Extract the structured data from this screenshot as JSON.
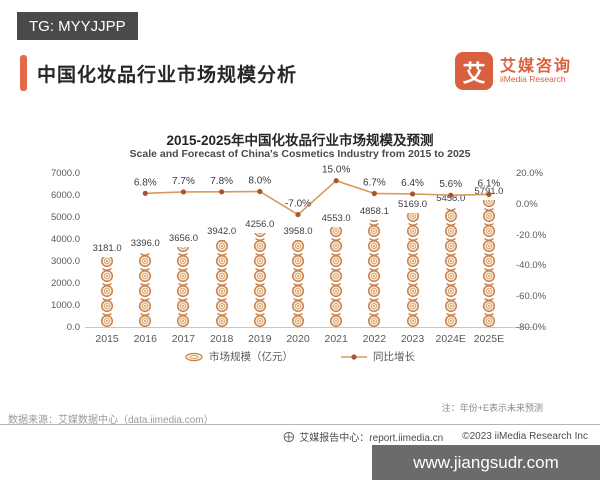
{
  "badge_top": "TG: MYYJJPP",
  "header": {
    "title": "中国化妆品行业市场规模分析"
  },
  "logo": {
    "glyph": "艾",
    "name_cn": "艾媒咨询",
    "name_en": "iiMedia Research",
    "color": "#D9603F"
  },
  "chart_data": {
    "type": "bar+line",
    "title": "2015-2025年中国化妆品行业市场规模及预测",
    "subtitle": "Scale and Forecast of China's Cosmetics Industry from 2015 to 2025",
    "categories": [
      "2015",
      "2016",
      "2017",
      "2018",
      "2019",
      "2020",
      "2021",
      "2022",
      "2023",
      "2024E",
      "2025E"
    ],
    "series": [
      {
        "name": "市场规模（亿元）",
        "type": "bar",
        "axis": "left",
        "values": [
          3181.0,
          3396.0,
          3656.0,
          3942.0,
          4256.0,
          3958.0,
          4553.0,
          4858.1,
          5169.0,
          5458.0,
          5791.0
        ]
      },
      {
        "name": "同比增长",
        "type": "line",
        "axis": "right",
        "values": [
          null,
          6.8,
          7.7,
          7.8,
          8.0,
          -7.0,
          15.0,
          6.7,
          6.4,
          5.6,
          6.1
        ]
      }
    ],
    "left_axis": {
      "ticks": [
        "7000.0",
        "6000.0",
        "5000.0",
        "4000.0",
        "3000.0",
        "2000.0",
        "1000.0",
        "0.0"
      ],
      "min": 0,
      "max": 7000
    },
    "right_axis": {
      "ticks": [
        "20.0%",
        "0.0%",
        "-20.0%",
        "-40.0%",
        "-60.0%",
        "-80.0%"
      ],
      "min": -80,
      "max": 20
    },
    "grid": false,
    "legend_position": "bottom",
    "colors": {
      "line": "#D89B60",
      "dot": "#A8552F",
      "coin_ring": "#C9824E",
      "coin_fill": "#FBEEDC",
      "coin_inner": "#DDA873",
      "label": "#3a3a3a"
    }
  },
  "footer": {
    "source": "数据来源：艾媒数据中心（data.iimedia.com）",
    "note": "注：年份+E表示未来预测",
    "report": "艾媒报告中心：report.iimedia.cn",
    "copyright": "©2023  iiMedia Research  Inc",
    "site_badge": "www.jiangsudr.com"
  }
}
